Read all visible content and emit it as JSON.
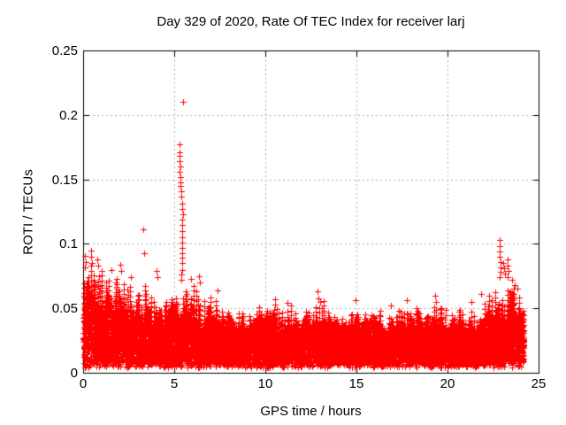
{
  "chart_data": {
    "type": "scatter",
    "title": "Day 329 of 2020, Rate Of TEC Index for receiver larj",
    "xlabel": "GPS time / hours",
    "ylabel": "ROTI / TECUs",
    "xlim": [
      0,
      25
    ],
    "ylim": [
      0,
      0.25
    ],
    "xticks": {
      "values": [
        0,
        5,
        10,
        15,
        20,
        25
      ],
      "labels": [
        "0",
        "5",
        "10",
        "15",
        "20",
        "25"
      ]
    },
    "yticks": {
      "values": [
        0,
        0.05,
        0.1,
        0.15,
        0.2,
        0.25
      ],
      "labels": [
        "0",
        "0.05",
        "0.1",
        "0.15",
        "0.2",
        "0.25"
      ]
    },
    "grid": {
      "show": true,
      "color": "#b0b0b0",
      "dash": [
        2,
        3
      ]
    },
    "legend": null,
    "marker": {
      "shape": "plus",
      "color": "#ff0000",
      "size": 7
    },
    "colors": {
      "axis": "#000000",
      "background": "#ffffff",
      "text": "#000000"
    },
    "x_data_range": [
      0.02,
      24.2
    ],
    "band_bottom": 0.006,
    "band_profile": [
      [
        0.0,
        0.056,
        0.093
      ],
      [
        0.3,
        0.053,
        0.096
      ],
      [
        0.7,
        0.05,
        0.09
      ],
      [
        1.2,
        0.048,
        0.083
      ],
      [
        1.7,
        0.047,
        0.083
      ],
      [
        2.2,
        0.045,
        0.086
      ],
      [
        2.7,
        0.043,
        0.074
      ],
      [
        3.2,
        0.042,
        0.068
      ],
      [
        3.8,
        0.043,
        0.08
      ],
      [
        4.3,
        0.042,
        0.071
      ],
      [
        4.8,
        0.042,
        0.066
      ],
      [
        5.3,
        0.045,
        0.076
      ],
      [
        5.9,
        0.043,
        0.076
      ],
      [
        6.4,
        0.04,
        0.077
      ],
      [
        7.0,
        0.039,
        0.066
      ],
      [
        7.6,
        0.037,
        0.061
      ],
      [
        8.2,
        0.036,
        0.057
      ],
      [
        9.0,
        0.035,
        0.052
      ],
      [
        9.7,
        0.036,
        0.055
      ],
      [
        10.3,
        0.037,
        0.058
      ],
      [
        11.0,
        0.036,
        0.057
      ],
      [
        11.7,
        0.034,
        0.052
      ],
      [
        12.3,
        0.034,
        0.052
      ],
      [
        12.9,
        0.036,
        0.062
      ],
      [
        13.5,
        0.034,
        0.052
      ],
      [
        14.2,
        0.034,
        0.05
      ],
      [
        15.0,
        0.035,
        0.056
      ],
      [
        15.7,
        0.034,
        0.051
      ],
      [
        16.5,
        0.034,
        0.052
      ],
      [
        17.2,
        0.034,
        0.053
      ],
      [
        17.9,
        0.035,
        0.057
      ],
      [
        18.6,
        0.034,
        0.054
      ],
      [
        19.3,
        0.035,
        0.06
      ],
      [
        20.0,
        0.034,
        0.052
      ],
      [
        20.7,
        0.034,
        0.053
      ],
      [
        21.4,
        0.035,
        0.056
      ],
      [
        22.0,
        0.037,
        0.062
      ],
      [
        22.5,
        0.04,
        0.068
      ],
      [
        23.0,
        0.045,
        0.072
      ],
      [
        23.5,
        0.046,
        0.075
      ],
      [
        23.9,
        0.048,
        0.068
      ],
      [
        24.2,
        0.046,
        0.058
      ]
    ],
    "outliers": [
      [
        0.08,
        0.082
      ],
      [
        0.1,
        0.091
      ],
      [
        0.13,
        0.086
      ],
      [
        0.42,
        0.09
      ],
      [
        0.45,
        0.095
      ],
      [
        0.48,
        0.085
      ],
      [
        0.78,
        0.088
      ],
      [
        0.82,
        0.083
      ],
      [
        1.55,
        0.08
      ],
      [
        2.02,
        0.084
      ],
      [
        2.07,
        0.079
      ],
      [
        2.6,
        0.074
      ],
      [
        3.29,
        0.111
      ],
      [
        3.34,
        0.093
      ],
      [
        4.05,
        0.079
      ],
      [
        4.1,
        0.074
      ],
      [
        5.28,
        0.177
      ],
      [
        5.29,
        0.171
      ],
      [
        5.3,
        0.168
      ],
      [
        5.31,
        0.164
      ],
      [
        5.32,
        0.16
      ],
      [
        5.3,
        0.156
      ],
      [
        5.33,
        0.152
      ],
      [
        5.34,
        0.148
      ],
      [
        5.36,
        0.145
      ],
      [
        5.38,
        0.141
      ],
      [
        5.4,
        0.137
      ],
      [
        5.47,
        0.21
      ],
      [
        5.45,
        0.131
      ],
      [
        5.46,
        0.127
      ],
      [
        5.47,
        0.123
      ],
      [
        5.45,
        0.119
      ],
      [
        5.46,
        0.115
      ],
      [
        5.44,
        0.11
      ],
      [
        5.43,
        0.105
      ],
      [
        5.44,
        0.101
      ],
      [
        5.43,
        0.097
      ],
      [
        5.45,
        0.093
      ],
      [
        5.43,
        0.089
      ],
      [
        5.44,
        0.085
      ],
      [
        5.42,
        0.08
      ],
      [
        5.41,
        0.076
      ],
      [
        5.39,
        0.072
      ],
      [
        5.92,
        0.073
      ],
      [
        6.38,
        0.075
      ],
      [
        6.43,
        0.07
      ],
      [
        7.4,
        0.064
      ],
      [
        10.55,
        0.057
      ],
      [
        11.2,
        0.054
      ],
      [
        12.85,
        0.063
      ],
      [
        12.9,
        0.058
      ],
      [
        13.0,
        0.055
      ],
      [
        14.95,
        0.056
      ],
      [
        16.9,
        0.052
      ],
      [
        17.78,
        0.056
      ],
      [
        19.3,
        0.06
      ],
      [
        19.38,
        0.055
      ],
      [
        21.3,
        0.055
      ],
      [
        21.85,
        0.061
      ],
      [
        22.87,
        0.103
      ],
      [
        22.86,
        0.098
      ],
      [
        22.88,
        0.094
      ],
      [
        22.87,
        0.09
      ],
      [
        22.89,
        0.086
      ],
      [
        22.9,
        0.082
      ],
      [
        22.92,
        0.078
      ],
      [
        22.85,
        0.074
      ],
      [
        23.05,
        0.085
      ],
      [
        23.1,
        0.081
      ],
      [
        23.15,
        0.077
      ],
      [
        23.3,
        0.088
      ],
      [
        23.32,
        0.083
      ],
      [
        23.35,
        0.079
      ],
      [
        23.28,
        0.074
      ],
      [
        23.55,
        0.072
      ],
      [
        23.7,
        0.068
      ],
      [
        23.85,
        0.065
      ]
    ],
    "generation": {
      "seed": 42,
      "column_step": 0.01,
      "points_per_column": 5,
      "hair_probability": 0.22,
      "dip_probability": 0.12,
      "hair_y_step": 0.0038,
      "mound_step": 0.18
    }
  }
}
